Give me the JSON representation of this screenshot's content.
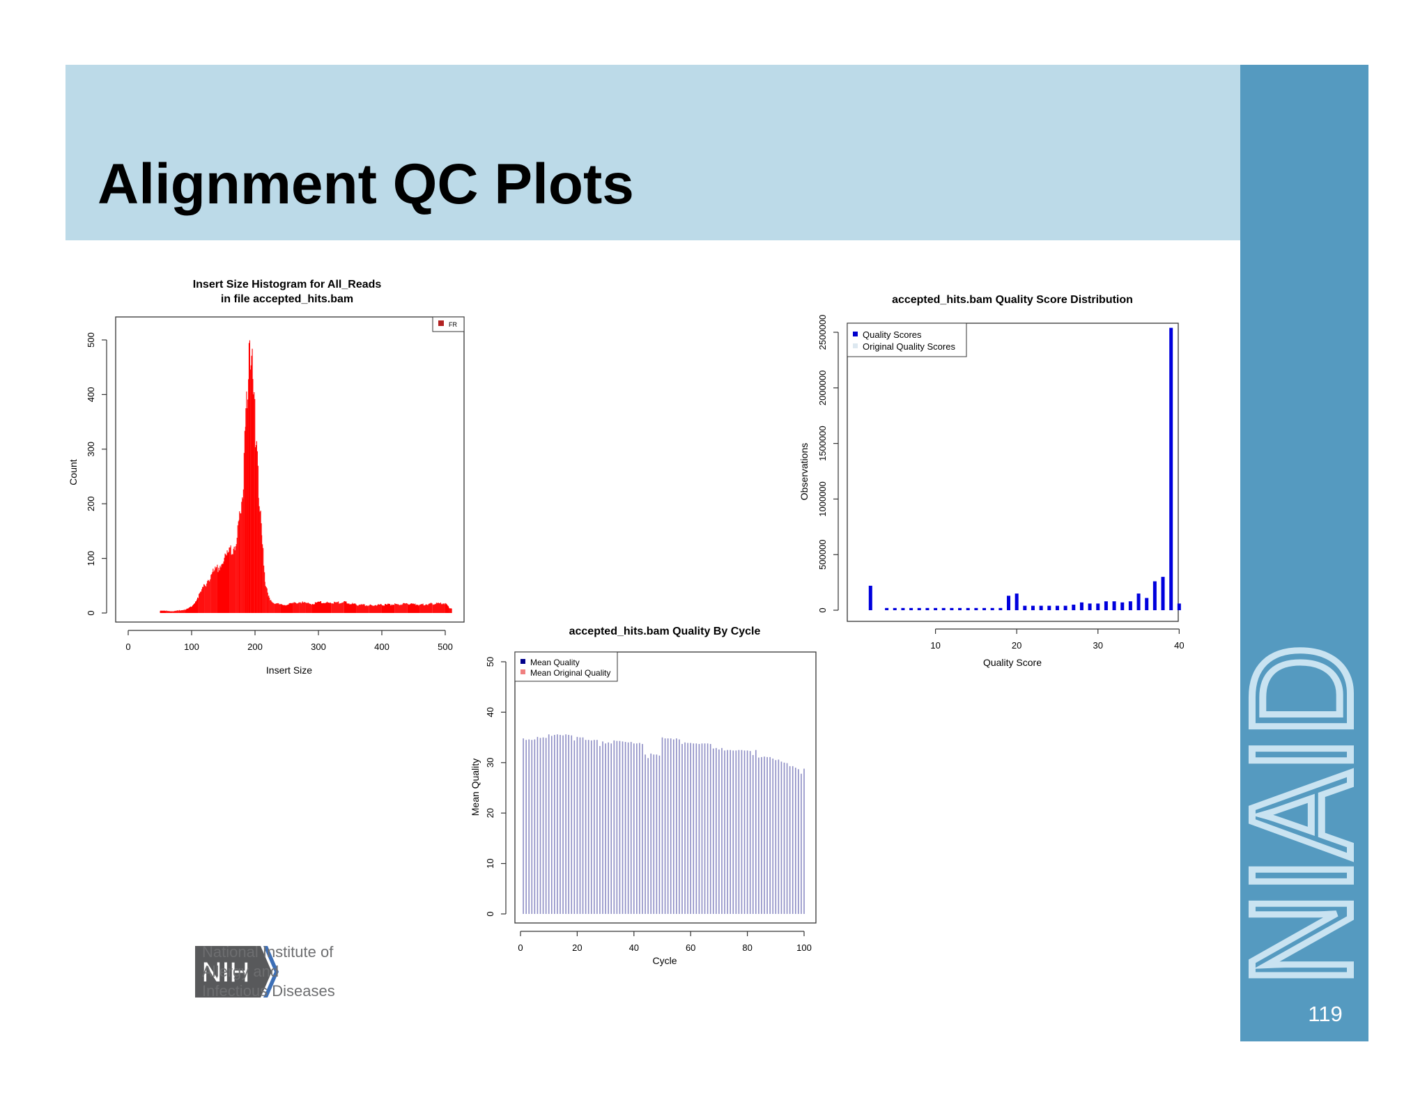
{
  "slide": {
    "title": "Alignment QC Plots",
    "page_number": "119",
    "brand": "NIAID",
    "nih_badge": "NIH",
    "nih_name": "National Institute of\nAllergy and\nInfectious Diseases",
    "colors": {
      "header_band": "#bcdae8",
      "side_band": "#559ac0",
      "nih_gray": "#6d6e70"
    }
  },
  "chart_data": [
    {
      "type": "bar",
      "title": [
        "Insert Size Histogram for All_Reads",
        "in file accepted_hits.bam"
      ],
      "xlabel": "Insert Size",
      "ylabel": "Count",
      "xlim": [
        0,
        500
      ],
      "ylim": [
        0,
        500
      ],
      "x_ticks": [
        "0",
        "100",
        "200",
        "300",
        "400",
        "500"
      ],
      "y_ticks": [
        "0",
        "100",
        "200",
        "300",
        "400",
        "500"
      ],
      "legend": [
        {
          "label": "FR",
          "color": "#b22222"
        }
      ],
      "legend_position": "top-right",
      "bar_color": "#ff0000",
      "x": [
        50,
        60,
        70,
        80,
        90,
        100,
        110,
        120,
        130,
        140,
        150,
        160,
        170,
        175,
        180,
        185,
        188,
        190,
        192,
        194,
        196,
        198,
        200,
        202,
        205,
        210,
        215,
        220,
        230,
        240,
        250,
        260,
        270,
        280,
        290,
        300,
        320,
        340,
        360,
        380,
        400,
        420,
        440,
        460,
        480,
        500,
        505,
        510
      ],
      "values": [
        4,
        4,
        3,
        5,
        6,
        12,
        30,
        50,
        70,
        80,
        95,
        110,
        130,
        170,
        230,
        350,
        430,
        450,
        470,
        455,
        440,
        400,
        340,
        290,
        230,
        140,
        60,
        30,
        18,
        15,
        15,
        18,
        20,
        18,
        17,
        20,
        18,
        20,
        15,
        14,
        15,
        16,
        17,
        15,
        17,
        18,
        10,
        8
      ]
    },
    {
      "type": "bar",
      "title": "accepted_hits.bam  Quality By Cycle",
      "xlabel": "Cycle",
      "ylabel": "Mean Quality",
      "xlim": [
        0,
        100
      ],
      "ylim": [
        0,
        50
      ],
      "x_ticks": [
        "0",
        "20",
        "40",
        "60",
        "80",
        "100"
      ],
      "y_ticks": [
        "0",
        "10",
        "20",
        "30",
        "40",
        "50"
      ],
      "legend": [
        {
          "label": "Mean Quality",
          "color": "#00008b"
        },
        {
          "label": "Mean Original Quality",
          "color": "#f08080"
        }
      ],
      "legend_position": "top-left",
      "bar_color": "#8c8cc4",
      "series": [
        {
          "name": "Mean Quality",
          "x": [
            1,
            2,
            3,
            4,
            5,
            6,
            7,
            8,
            9,
            10,
            11,
            12,
            13,
            14,
            15,
            16,
            17,
            18,
            19,
            20,
            21,
            22,
            23,
            24,
            25,
            26,
            27,
            28,
            29,
            30,
            31,
            32,
            33,
            34,
            35,
            36,
            37,
            38,
            39,
            40,
            41,
            42,
            43,
            44,
            45,
            46,
            47,
            48,
            49,
            50,
            51,
            52,
            53,
            54,
            55,
            56,
            57,
            58,
            59,
            60,
            61,
            62,
            63,
            64,
            65,
            66,
            67,
            68,
            69,
            70,
            71,
            72,
            73,
            74,
            75,
            76,
            77,
            78,
            79,
            80,
            81,
            82,
            83,
            84,
            85,
            86,
            87,
            88,
            89,
            90,
            91,
            92,
            93,
            94,
            95,
            96,
            97,
            98,
            99,
            100
          ],
          "values": [
            34.8,
            34.5,
            34.6,
            34.5,
            34.6,
            35.1,
            34.9,
            35.0,
            34.9,
            35.6,
            35.3,
            35.5,
            35.6,
            35.5,
            35.4,
            35.6,
            35.5,
            35.4,
            34.4,
            35.1,
            35.0,
            35.0,
            34.5,
            34.5,
            34.4,
            34.5,
            34.5,
            33.3,
            34.2,
            33.8,
            34.0,
            33.8,
            34.4,
            34.3,
            34.3,
            34.2,
            34.1,
            34.0,
            34.1,
            33.8,
            33.8,
            33.9,
            33.7,
            31.6,
            30.9,
            31.8,
            31.6,
            31.6,
            31.4,
            35.0,
            34.8,
            34.8,
            34.8,
            34.6,
            34.8,
            34.6,
            33.7,
            34.0,
            33.9,
            33.9,
            33.8,
            33.8,
            33.7,
            33.8,
            33.8,
            33.8,
            33.7,
            32.8,
            32.9,
            32.6,
            32.9,
            32.4,
            32.5,
            32.5,
            32.4,
            32.4,
            32.5,
            32.5,
            32.4,
            32.4,
            32.3,
            31.5,
            32.5,
            31.0,
            31.1,
            31.2,
            31.1,
            31.1,
            30.8,
            30.5,
            30.6,
            30.2,
            30.0,
            29.9,
            29.3,
            29.3,
            29.0,
            28.7,
            27.8,
            28.8
          ]
        }
      ]
    },
    {
      "type": "bar",
      "title": "accepted_hits.bam  Quality Score Distribution",
      "xlabel": "Quality Score",
      "ylabel": "Observations",
      "xlim": [
        0,
        41
      ],
      "ylim": [
        0,
        2500000
      ],
      "x_ticks": [
        "10",
        "20",
        "30",
        "40"
      ],
      "y_ticks": [
        "0",
        "500000",
        "1000000",
        "1500000",
        "2000000",
        "2500000"
      ],
      "legend": [
        {
          "label": "Quality Scores",
          "color": "#0000cd"
        },
        {
          "label": "Original Quality Scores",
          "color": "#dde8f0"
        }
      ],
      "legend_position": "top-left",
      "bar_color": "#0000dd",
      "series": [
        {
          "name": "Quality Scores",
          "x": [
            2,
            4,
            5,
            6,
            7,
            8,
            9,
            10,
            11,
            12,
            13,
            14,
            15,
            16,
            17,
            18,
            19,
            20,
            21,
            22,
            23,
            24,
            25,
            26,
            27,
            28,
            29,
            30,
            31,
            32,
            33,
            34,
            35,
            36,
            37,
            38,
            39,
            40
          ],
          "values": [
            220000,
            20000,
            20000,
            20000,
            20000,
            20000,
            20000,
            20000,
            20000,
            20000,
            20000,
            20000,
            20000,
            20000,
            20000,
            20000,
            130000,
            150000,
            40000,
            40000,
            40000,
            40000,
            40000,
            40000,
            50000,
            70000,
            60000,
            60000,
            80000,
            80000,
            70000,
            80000,
            150000,
            110000,
            260000,
            300000,
            2540000,
            60000
          ]
        }
      ]
    }
  ]
}
